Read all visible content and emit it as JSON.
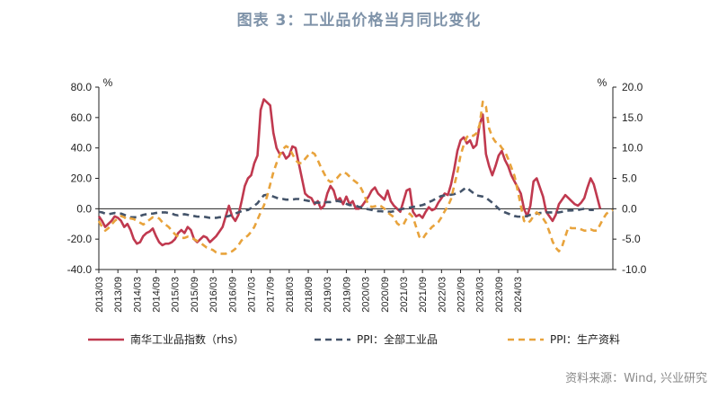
{
  "title": "图表 3：工业品价格当月同比变化",
  "source": "资料来源：Wind, 兴业研究",
  "chart_data": {
    "type": "line",
    "left_unit": "%",
    "right_unit": "%",
    "left_ylim": [
      -40,
      80
    ],
    "right_ylim": [
      -10,
      20
    ],
    "left_ticks": [
      "80.0",
      "60.0",
      "40.0",
      "20.0",
      "0.0",
      "-20.0",
      "-40.0"
    ],
    "right_ticks": [
      "20.0",
      "15.0",
      "10.0",
      "5.0",
      "0.0",
      "-5.0",
      "-10.0"
    ],
    "x_ticks": [
      "2013/03",
      "2013/09",
      "2014/03",
      "2014/09",
      "2015/03",
      "2015/09",
      "2016/03",
      "2016/09",
      "2017/03",
      "2017/09",
      "2018/03",
      "2018/09",
      "2019/03",
      "2019/09",
      "2020/03",
      "2020/09",
      "2021/03",
      "2021/09",
      "2022/03",
      "2022/09",
      "2023/03",
      "2023/09",
      "2024/03"
    ],
    "x_start": "2013/03",
    "series": [
      {
        "name": "南华工业品指数（rhs）",
        "axis": "left",
        "color": "#c0394f",
        "dash": "solid",
        "values": [
          -5,
          -8,
          -12,
          -10,
          -8,
          -5,
          -6,
          -8,
          -12,
          -10,
          -14,
          -20,
          -23,
          -22,
          -18,
          -16,
          -15,
          -13,
          -18,
          -22,
          -24,
          -23,
          -23,
          -22,
          -20,
          -16,
          -14,
          -16,
          -12,
          -14,
          -20,
          -22,
          -20,
          -18,
          -19,
          -22,
          -20,
          -18,
          -15,
          -12,
          -5,
          2,
          -5,
          -8,
          -4,
          5,
          15,
          20,
          22,
          30,
          35,
          65,
          72,
          70,
          68,
          50,
          40,
          36,
          37,
          33,
          35,
          41,
          40,
          30,
          20,
          10,
          8,
          7,
          3,
          5,
          0,
          2,
          10,
          15,
          12,
          5,
          7,
          3,
          8,
          3,
          5,
          0,
          0,
          2,
          5,
          8,
          12,
          14,
          10,
          8,
          6,
          12,
          5,
          2,
          0,
          -2,
          5,
          12,
          13,
          -2,
          -5,
          -4,
          -6,
          -2,
          1,
          -1,
          0,
          4,
          7,
          10,
          9,
          16,
          26,
          38,
          45,
          47,
          43,
          45,
          40,
          42,
          55,
          62,
          36,
          28,
          22,
          28,
          35,
          38,
          32,
          28,
          22,
          18,
          14,
          10,
          0,
          -5,
          2,
          18,
          20,
          14,
          8,
          -2,
          -5,
          -8,
          -4,
          3,
          6,
          9,
          7,
          5,
          3,
          2,
          4,
          7,
          14,
          20,
          16,
          8,
          0
        ]
      },
      {
        "name": "PPI：全部工业品",
        "axis": "right",
        "color": "#44546a",
        "dash": "dash",
        "values": [
          -0.5,
          -0.6,
          -0.8,
          -0.9,
          -0.8,
          -0.7,
          -0.8,
          -0.8,
          -1.0,
          -1.2,
          -1.4,
          -1.4,
          -1.4,
          -1.2,
          -1.0,
          -0.9,
          -0.8,
          -0.8,
          -0.7,
          -0.6,
          -0.6,
          -0.6,
          -0.7,
          -0.8,
          -1.0,
          -1.1,
          -1.0,
          -0.9,
          -1.0,
          -1.1,
          -1.2,
          -1.3,
          -1.3,
          -1.3,
          -1.4,
          -1.5,
          -1.5,
          -1.5,
          -1.4,
          -1.4,
          -1.3,
          -1.2,
          -1.0,
          -0.8,
          -0.6,
          -0.4,
          -0.3,
          -0.2,
          0.1,
          0.5,
          0.9,
          1.6,
          2.2,
          2.3,
          2.2,
          2.0,
          1.8,
          1.6,
          1.6,
          1.5,
          1.5,
          1.5,
          1.6,
          1.6,
          1.5,
          1.4,
          1.3,
          1.2,
          1.0,
          1.0,
          1.0,
          1.0,
          1.1,
          1.1,
          1.2,
          1.3,
          1.2,
          1.0,
          0.8,
          0.6,
          0.6,
          0.5,
          0.3,
          0.2,
          0.0,
          -0.1,
          -0.2,
          -0.3,
          -0.4,
          -0.4,
          -0.5,
          -0.5,
          -0.5,
          -0.4,
          -0.3,
          -0.1,
          0.0,
          0.1,
          0.2,
          0.3,
          0.4,
          0.5,
          0.6,
          0.8,
          1.1,
          1.3,
          1.6,
          1.9,
          2.1,
          2.2,
          2.3,
          2.3,
          2.4,
          2.6,
          2.8,
          3.2,
          3.5,
          3.0,
          2.6,
          2.2,
          2.1,
          2.0,
          1.8,
          1.4,
          1.0,
          0.5,
          0.0,
          -0.4,
          -0.6,
          -0.8,
          -1.0,
          -1.2,
          -1.3,
          -1.3,
          -1.3,
          -1.2,
          -1.0,
          -0.9,
          -0.8,
          -0.7,
          -0.7,
          -0.6,
          -0.6,
          -0.6,
          -0.6,
          -0.6,
          -0.5,
          -0.4,
          -0.3,
          -0.3,
          -0.2,
          -0.2,
          -0.1,
          0.0,
          -0.1,
          -0.2,
          -0.2
        ]
      },
      {
        "name": "PPI：生产资料",
        "axis": "right",
        "color": "#e8a33c",
        "dash": "dash",
        "values": [
          -2.0,
          -3.0,
          -3.6,
          -3.2,
          -2.6,
          -2.0,
          -1.6,
          -1.2,
          -1.4,
          -1.8,
          -1.6,
          -1.7,
          -2.0,
          -2.3,
          -2.6,
          -2.2,
          -1.8,
          -1.4,
          -1.4,
          -1.6,
          -2.2,
          -2.6,
          -3.0,
          -3.6,
          -4.2,
          -4.6,
          -4.8,
          -4.8,
          -4.6,
          -4.7,
          -5.0,
          -5.3,
          -5.6,
          -6.0,
          -6.4,
          -6.6,
          -6.8,
          -7.2,
          -7.4,
          -7.4,
          -7.4,
          -7.2,
          -7.0,
          -6.6,
          -6.0,
          -5.2,
          -4.8,
          -4.4,
          -3.8,
          -3.0,
          -1.8,
          -0.6,
          0.5,
          2.0,
          4.0,
          6.0,
          7.5,
          8.8,
          9.8,
          10.3,
          10.0,
          9.0,
          8.0,
          7.5,
          7.5,
          8.2,
          8.8,
          9.3,
          9.0,
          8.0,
          6.8,
          5.8,
          4.8,
          4.4,
          4.6,
          5.0,
          5.6,
          6.0,
          5.8,
          5.3,
          4.8,
          4.4,
          4.0,
          3.0,
          1.8,
          0.6,
          0.3,
          0.4,
          0.6,
          0.4,
          0.0,
          -0.6,
          -1.0,
          -1.4,
          -2.4,
          -2.8,
          -2.6,
          -1.6,
          -0.8,
          -1.4,
          -3.0,
          -4.6,
          -5.0,
          -4.2,
          -3.6,
          -3.0,
          -2.6,
          -2.2,
          -1.4,
          -0.4,
          0.4,
          1.6,
          3.8,
          6.0,
          8.8,
          10.5,
          11.8,
          12.2,
          12.0,
          12.4,
          13.8,
          17.6,
          16.8,
          13.2,
          11.8,
          11.0,
          10.8,
          10.0,
          9.4,
          8.2,
          6.8,
          5.4,
          3.0,
          0.5,
          -2.0,
          -2.4,
          -2.0,
          -1.2,
          -0.6,
          -1.0,
          -1.6,
          -2.4,
          -3.8,
          -5.4,
          -6.4,
          -7.0,
          -6.2,
          -4.6,
          -3.0,
          -3.2,
          -3.2,
          -3.2,
          -3.4,
          -3.6,
          -3.6,
          -3.4,
          -3.6,
          -3.6,
          -2.6,
          -1.6,
          -0.8,
          -0.5,
          -0.2
        ]
      }
    ],
    "legend_position": "bottom",
    "grid": false
  }
}
